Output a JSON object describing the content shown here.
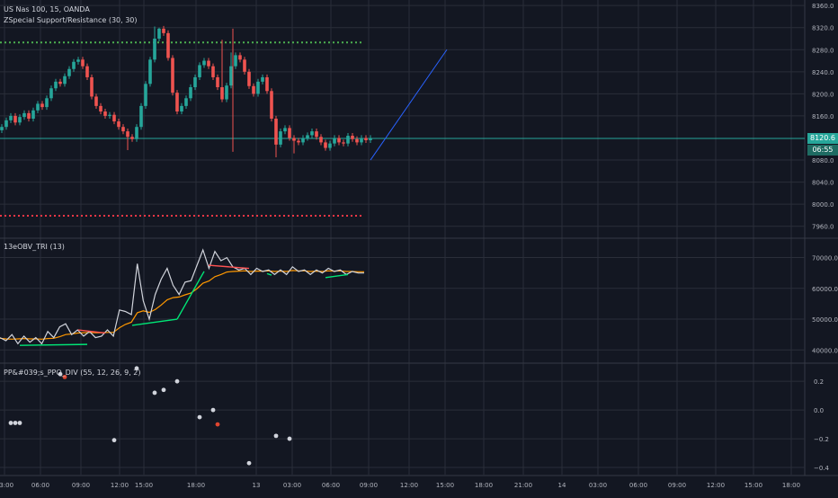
{
  "panes": {
    "main": {
      "title": "US Nas 100, 15, OANDA",
      "indicator": "ZSpecial Support/Resistance (30, 30)",
      "y_ticks": [
        "8360.0",
        "8320.0",
        "8280.0",
        "8240.0",
        "8200.0",
        "8160.0",
        "8080.0",
        "8040.0",
        "8000.0",
        "7960.0"
      ],
      "last_price": "8120.6",
      "countdown": "06:55"
    },
    "obv": {
      "title": "13eOBV_TRI (13)",
      "y_ticks": [
        "70000.0",
        "60000.0",
        "50000.0",
        "40000.0"
      ]
    },
    "ppo": {
      "title": "PP&#039;s_PPO_DIV (55, 12, 26, 9, 2)",
      "y_ticks": [
        "0.2",
        "0.0",
        "−0.2",
        "−0.4"
      ]
    }
  },
  "x_axis": {
    "labels": [
      "03:00",
      "06:00",
      "09:00",
      "12:00",
      "15:00",
      "18:00",
      "13",
      "03:00",
      "06:00",
      "09:00",
      "12:00",
      "15:00",
      "18:00",
      "21:00",
      "14",
      "03:00",
      "06:00",
      "09:00",
      "12:00",
      "15:00",
      "18:00"
    ]
  },
  "colors": {
    "background": "#131722",
    "grid": "#2a2e39",
    "up_candle": "#26a69a",
    "down_candle": "#ef5350",
    "resistance": "#4caf50",
    "support": "#f23645",
    "last_price_line": "#26a69a",
    "trend_line": "#2962ff",
    "obv_line": "#d1d4dc",
    "obv_ma": "#ff9800",
    "div_bull": "#00e676",
    "div_bear": "#ff5252"
  },
  "chart_data": [
    {
      "type": "candlestick",
      "title": "US Nas 100, 15, OANDA",
      "ylim": [
        7940,
        8370
      ],
      "resistance_level": 8293,
      "support_level": 7979,
      "last_price": 8120.6,
      "trend_line": {
        "from": {
          "t": 82,
          "y": 8080
        },
        "to": {
          "t": 99,
          "y": 8280
        }
      },
      "closes": [
        8140,
        8152,
        8160,
        8148,
        8158,
        8165,
        8155,
        8170,
        8182,
        8176,
        8192,
        8210,
        8222,
        8218,
        8232,
        8245,
        8258,
        8262,
        8250,
        8230,
        8195,
        8178,
        8168,
        8160,
        8162,
        8150,
        8140,
        8132,
        8122,
        8118,
        8140,
        8178,
        8218,
        8262,
        8300,
        8318,
        8310,
        8265,
        8202,
        8168,
        8178,
        8192,
        8212,
        8230,
        8252,
        8260,
        8250,
        8230,
        8212,
        8190,
        8215,
        8250,
        8270,
        8262,
        8240,
        8214,
        8200,
        8222,
        8230,
        8205,
        8155,
        8108,
        8132,
        8138,
        8120,
        8115,
        8112,
        8120,
        8125,
        8132,
        8122,
        8112,
        8102,
        8110,
        8120,
        8112,
        8110,
        8124,
        8118,
        8112,
        8120,
        8116,
        8120
      ],
      "highs_extra": [
        {
          "i": 35,
          "y": 8320
        },
        {
          "i": 34,
          "y": 8322
        },
        {
          "i": 49,
          "y": 8298
        },
        {
          "i": 51,
          "y": 8275
        }
      ],
      "lows_extra": [
        {
          "i": 28,
          "y": 8098
        },
        {
          "i": 61,
          "y": 8085
        },
        {
          "i": 65,
          "y": 8092
        }
      ]
    },
    {
      "type": "line",
      "title": "13eOBV_TRI (13)",
      "ylim": [
        36000,
        76000
      ],
      "series": [
        {
          "values": [
            44000,
            43000,
            45000,
            42000,
            44500,
            42500,
            44000,
            42000,
            46000,
            44000,
            47500,
            48500,
            45000,
            46500,
            44500,
            46000,
            44000,
            44500,
            46500,
            44500,
            53000,
            52500,
            51500,
            68000,
            56000,
            50000,
            58000,
            63000,
            66500,
            61000,
            58000,
            62000,
            62500,
            67500,
            72500,
            66500,
            72000,
            69000,
            70000,
            67000,
            66000,
            66500,
            64500,
            66500,
            65500,
            66000,
            64500,
            66000,
            64500,
            67000,
            65500,
            66000,
            64500,
            66000,
            65000,
            66500,
            65500,
            66000,
            64500,
            65500,
            65000,
            65000
          ]
        },
        {
          "values": [
            43800,
            43600,
            43500,
            43600,
            43700,
            43600,
            43600,
            43500,
            43700,
            43800,
            44300,
            45000,
            45200,
            45500,
            45600,
            45700,
            45600,
            45600,
            45700,
            45700,
            47200,
            48300,
            49000,
            52100,
            52700,
            52200,
            53100,
            54600,
            56300,
            57000,
            57200,
            57900,
            58500,
            59900,
            61700,
            62400,
            63800,
            64500,
            65300,
            65500,
            65600,
            65700,
            65500,
            65600,
            65600,
            65700,
            65500,
            65600,
            65500,
            65800,
            65700,
            65700,
            65500,
            65600,
            65500,
            65700,
            65600,
            65700,
            65500,
            65500,
            65400,
            65400
          ]
        }
      ],
      "divergence_lines": [
        {
          "color": "bull",
          "points": [
            [
              4,
              41500
            ],
            [
              19,
              41800
            ]
          ]
        },
        {
          "color": "bear",
          "points": [
            [
              17,
              46500
            ],
            [
              23,
              45500
            ]
          ]
        },
        {
          "color": "bull",
          "points": [
            [
              29,
              48000
            ],
            [
              39,
              50000
            ]
          ]
        },
        {
          "color": "bull",
          "points": [
            [
              39,
              50000
            ],
            [
              45,
              65500
            ]
          ]
        },
        {
          "color": "bear",
          "points": [
            [
              46,
              67500
            ],
            [
              55,
              66500
            ]
          ]
        },
        {
          "color": "bull",
          "points": [
            [
              59,
              64800
            ],
            [
              60,
              64300
            ]
          ]
        },
        {
          "color": "bull",
          "points": [
            [
              72,
              63500
            ],
            [
              77,
              64500
            ]
          ]
        }
      ]
    },
    {
      "type": "scatter",
      "title": "PP&#039;s_PPO_DIV (55, 12, 26, 9, 2)",
      "ylim": [
        -0.45,
        0.32
      ],
      "points": [
        {
          "t": 2,
          "y": -0.09,
          "c": "w"
        },
        {
          "t": 3,
          "y": -0.09,
          "c": "w"
        },
        {
          "t": 4,
          "y": -0.09,
          "c": "w"
        },
        {
          "t": 13,
          "y": 0.25,
          "c": "w"
        },
        {
          "t": 14,
          "y": 0.23,
          "c": "r"
        },
        {
          "t": 25,
          "y": -0.21,
          "c": "w"
        },
        {
          "t": 30,
          "y": 0.29,
          "c": "w"
        },
        {
          "t": 34,
          "y": 0.12,
          "c": "w"
        },
        {
          "t": 36,
          "y": 0.14,
          "c": "w"
        },
        {
          "t": 39,
          "y": 0.2,
          "c": "w"
        },
        {
          "t": 44,
          "y": -0.05,
          "c": "w"
        },
        {
          "t": 47,
          "y": 0.0,
          "c": "w"
        },
        {
          "t": 48,
          "y": -0.1,
          "c": "r"
        },
        {
          "t": 55,
          "y": -0.37,
          "c": "w"
        },
        {
          "t": 61,
          "y": -0.18,
          "c": "w"
        },
        {
          "t": 64,
          "y": -0.2,
          "c": "w"
        }
      ]
    }
  ]
}
